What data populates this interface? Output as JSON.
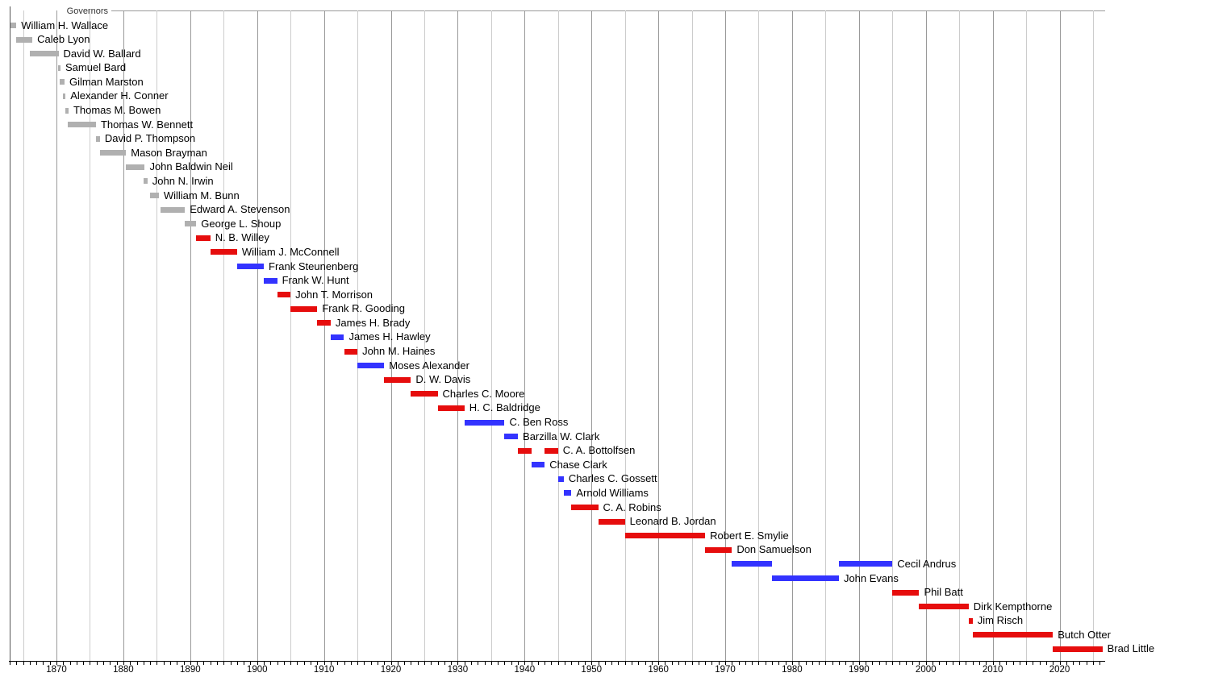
{
  "chart_data": {
    "type": "bar",
    "subtype": "horizontal-timeline-gantt",
    "title": "Governors",
    "xlabel": "",
    "ylabel": "",
    "xlim": [
      1863,
      2026.8
    ],
    "x_ticks": [
      1870,
      1880,
      1890,
      1900,
      1910,
      1920,
      1930,
      1940,
      1950,
      1960,
      1970,
      1980,
      1990,
      2000,
      2010,
      2020
    ],
    "x_minor_tick_interval_years": 1,
    "x_gridline_interval_years": 5,
    "grid": true,
    "legend_position": "none",
    "colors": {
      "territorial": "#b0b0b0",
      "republican": "#e60d0d",
      "democrat": "#3333ff",
      "grid_decade": "#999999",
      "grid_minor": "#cccccc",
      "axis": "#000000"
    },
    "series": [
      {
        "name": "William H. Wallace",
        "party": "territorial",
        "terms": [
          [
            1863.0,
            1864.0
          ]
        ]
      },
      {
        "name": "Caleb Lyon",
        "party": "territorial",
        "terms": [
          [
            1864.0,
            1866.4
          ]
        ]
      },
      {
        "name": "David W. Ballard",
        "party": "territorial",
        "terms": [
          [
            1866.0,
            1870.3
          ]
        ]
      },
      {
        "name": "Samuel Bard",
        "party": "territorial",
        "terms": [
          [
            1870.2,
            1870.6
          ]
        ]
      },
      {
        "name": "Gilman Marston",
        "party": "territorial",
        "terms": [
          [
            1870.5,
            1871.2
          ]
        ]
      },
      {
        "name": "Alexander H. Conner",
        "party": "territorial",
        "terms": [
          [
            1871.0,
            1871.35
          ]
        ]
      },
      {
        "name": "Thomas M. Bowen",
        "party": "territorial",
        "terms": [
          [
            1871.3,
            1871.8
          ]
        ]
      },
      {
        "name": "Thomas W. Bennett",
        "party": "territorial",
        "terms": [
          [
            1871.7,
            1875.9
          ]
        ]
      },
      {
        "name": "David P. Thompson",
        "party": "territorial",
        "terms": [
          [
            1875.9,
            1876.5
          ]
        ]
      },
      {
        "name": "Mason Brayman",
        "party": "territorial",
        "terms": [
          [
            1876.5,
            1880.4
          ]
        ]
      },
      {
        "name": "John Baldwin Neil",
        "party": "territorial",
        "terms": [
          [
            1880.4,
            1883.2
          ]
        ]
      },
      {
        "name": "John N. Irwin",
        "party": "territorial",
        "terms": [
          [
            1883.0,
            1883.6
          ]
        ]
      },
      {
        "name": "William M. Bunn",
        "party": "territorial",
        "terms": [
          [
            1884.0,
            1885.3
          ]
        ]
      },
      {
        "name": "Edward A. Stevenson",
        "party": "territorial",
        "terms": [
          [
            1885.5,
            1889.2
          ]
        ]
      },
      {
        "name": "George L. Shoup",
        "party": "territorial",
        "terms": [
          [
            1889.2,
            1890.9
          ]
        ]
      },
      {
        "name": "N. B. Willey",
        "party": "republican",
        "terms": [
          [
            1890.9,
            1893.0
          ]
        ]
      },
      {
        "name": "William J. McConnell",
        "party": "republican",
        "terms": [
          [
            1893.0,
            1897.0
          ]
        ]
      },
      {
        "name": "Frank Steunenberg",
        "party": "democrat",
        "terms": [
          [
            1897.0,
            1901.0
          ]
        ]
      },
      {
        "name": "Frank W. Hunt",
        "party": "democrat",
        "terms": [
          [
            1901.0,
            1903.0
          ]
        ]
      },
      {
        "name": "John T. Morrison",
        "party": "republican",
        "terms": [
          [
            1903.0,
            1905.0
          ]
        ]
      },
      {
        "name": "Frank R. Gooding",
        "party": "republican",
        "terms": [
          [
            1905.0,
            1909.0
          ]
        ]
      },
      {
        "name": "James H. Brady",
        "party": "republican",
        "terms": [
          [
            1909.0,
            1911.0
          ]
        ]
      },
      {
        "name": "James H. Hawley",
        "party": "democrat",
        "terms": [
          [
            1911.0,
            1913.0
          ]
        ]
      },
      {
        "name": "John M. Haines",
        "party": "republican",
        "terms": [
          [
            1913.0,
            1915.0
          ]
        ]
      },
      {
        "name": "Moses Alexander",
        "party": "democrat",
        "terms": [
          [
            1915.0,
            1919.0
          ]
        ]
      },
      {
        "name": "D. W. Davis",
        "party": "republican",
        "terms": [
          [
            1919.0,
            1923.0
          ]
        ]
      },
      {
        "name": "Charles C. Moore",
        "party": "republican",
        "terms": [
          [
            1923.0,
            1927.0
          ]
        ]
      },
      {
        "name": "H. C. Baldridge",
        "party": "republican",
        "terms": [
          [
            1927.0,
            1931.0
          ]
        ]
      },
      {
        "name": "C. Ben Ross",
        "party": "democrat",
        "terms": [
          [
            1931.0,
            1937.0
          ]
        ]
      },
      {
        "name": "Barzilla W. Clark",
        "party": "democrat",
        "terms": [
          [
            1937.0,
            1939.0
          ]
        ]
      },
      {
        "name": "C. A. Bottolfsen",
        "party": "republican",
        "terms": [
          [
            1939.0,
            1941.0
          ],
          [
            1943.0,
            1945.0
          ]
        ]
      },
      {
        "name": "Chase Clark",
        "party": "democrat",
        "terms": [
          [
            1941.0,
            1943.0
          ]
        ]
      },
      {
        "name": "Charles C. Gossett",
        "party": "democrat",
        "terms": [
          [
            1945.0,
            1945.85
          ]
        ]
      },
      {
        "name": "Arnold Williams",
        "party": "democrat",
        "terms": [
          [
            1945.85,
            1947.0
          ]
        ]
      },
      {
        "name": "C. A. Robins",
        "party": "republican",
        "terms": [
          [
            1947.0,
            1951.0
          ]
        ]
      },
      {
        "name": "Leonard B. Jordan",
        "party": "republican",
        "terms": [
          [
            1951.0,
            1955.0
          ]
        ]
      },
      {
        "name": "Robert E. Smylie",
        "party": "republican",
        "terms": [
          [
            1955.0,
            1967.0
          ]
        ]
      },
      {
        "name": "Don Samuelson",
        "party": "republican",
        "terms": [
          [
            1967.0,
            1971.0
          ]
        ]
      },
      {
        "name": "Cecil Andrus",
        "party": "democrat",
        "terms": [
          [
            1971.0,
            1977.0
          ],
          [
            1987.0,
            1995.0
          ]
        ]
      },
      {
        "name": "John Evans",
        "party": "democrat",
        "terms": [
          [
            1977.0,
            1987.0
          ]
        ]
      },
      {
        "name": "Phil Batt",
        "party": "republican",
        "terms": [
          [
            1995.0,
            1999.0
          ]
        ]
      },
      {
        "name": "Dirk Kempthorne",
        "party": "republican",
        "terms": [
          [
            1999.0,
            2006.4
          ]
        ]
      },
      {
        "name": "Jim Risch",
        "party": "republican",
        "terms": [
          [
            2006.4,
            2007.0
          ]
        ]
      },
      {
        "name": "Butch Otter",
        "party": "republican",
        "terms": [
          [
            2007.0,
            2019.0
          ]
        ]
      },
      {
        "name": "Brad Little",
        "party": "republican",
        "terms": [
          [
            2019.0,
            2026.4
          ]
        ]
      }
    ]
  }
}
